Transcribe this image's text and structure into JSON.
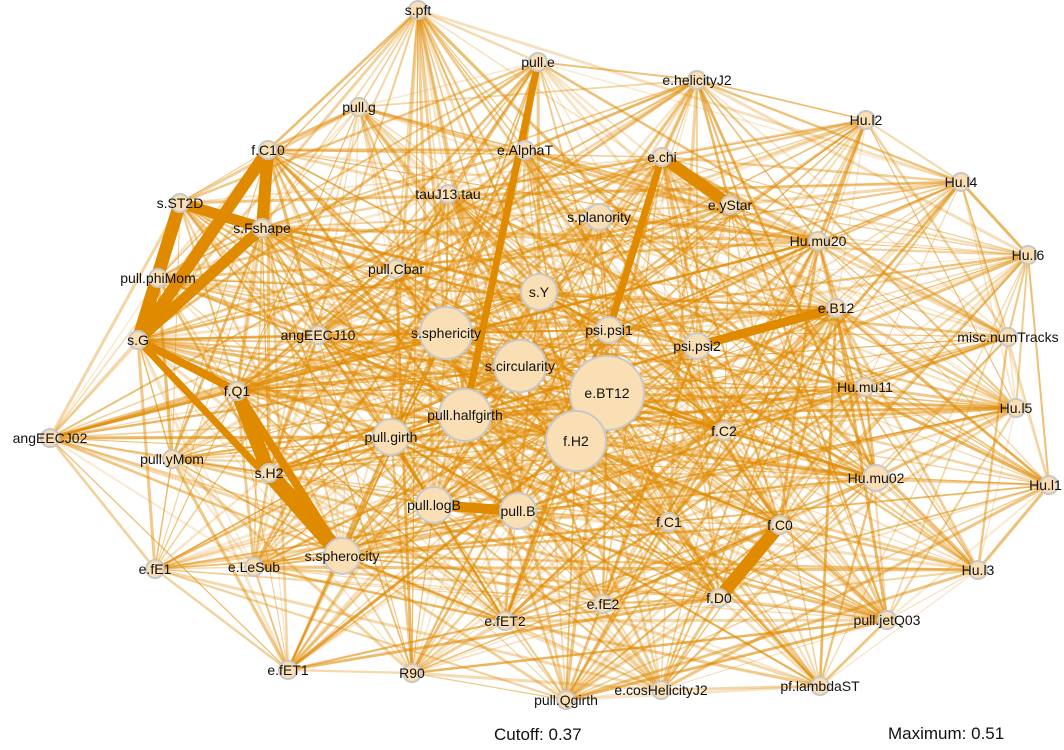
{
  "colors": {
    "edge": "#e08a00",
    "node_fill": "#f9dfb3",
    "node_stroke": "#c8c8c8"
  },
  "footer": {
    "cutoff": "Cutoff: 0.37",
    "maximum": "Maximum: 0.51"
  },
  "nodes": [
    {
      "id": "s.pft",
      "label": "s.pft",
      "size": 1
    },
    {
      "id": "pull.e",
      "label": "pull.e",
      "size": 1
    },
    {
      "id": "e.helicityJ2",
      "label": "e.helicityJ2",
      "size": 1
    },
    {
      "id": "pull.g",
      "label": "pull.g",
      "size": 1
    },
    {
      "id": "Hu.l2",
      "label": "Hu.l2",
      "size": 1
    },
    {
      "id": "f.C10",
      "label": "f.C10",
      "size": 1
    },
    {
      "id": "e.AlphaT",
      "label": "e.AlphaT",
      "size": 1
    },
    {
      "id": "e.chi",
      "label": "e.chi",
      "size": 1
    },
    {
      "id": "Hu.l4",
      "label": "Hu.l4",
      "size": 1
    },
    {
      "id": "s.ST2D",
      "label": "s.ST2D",
      "size": 1
    },
    {
      "id": "tauJ13.tau",
      "label": "tauJ13.tau",
      "size": 1
    },
    {
      "id": "e.yStar",
      "label": "e.yStar",
      "size": 1
    },
    {
      "id": "s.Fshape",
      "label": "s.Fshape",
      "size": 1
    },
    {
      "id": "s.planority",
      "label": "s.planority",
      "size": 2
    },
    {
      "id": "Hu.mu20",
      "label": "Hu.mu20",
      "size": 1
    },
    {
      "id": "Hu.l6",
      "label": "Hu.l6",
      "size": 1
    },
    {
      "id": "pull.phiMom",
      "label": "pull.phiMom",
      "size": 1
    },
    {
      "id": "pull.Cbar",
      "label": "pull.Cbar",
      "size": 1
    },
    {
      "id": "s.Y",
      "label": "s.Y",
      "size": 3
    },
    {
      "id": "e.B12",
      "label": "e.B12",
      "size": 1
    },
    {
      "id": "s.G",
      "label": "s.G",
      "size": 1
    },
    {
      "id": "angEECJ10",
      "label": "angEECJ10",
      "size": 1
    },
    {
      "id": "s.sphericity",
      "label": "s.sphericity",
      "size": 4
    },
    {
      "id": "psi.psi1",
      "label": "psi.psi1",
      "size": 2
    },
    {
      "id": "psi.psi2",
      "label": "psi.psi2",
      "size": 2
    },
    {
      "id": "misc.numTracks",
      "label": "misc.numTracks",
      "size": 1
    },
    {
      "id": "s.circularity",
      "label": "s.circularity",
      "size": 4
    },
    {
      "id": "f.Q1",
      "label": "f.Q1",
      "size": 1
    },
    {
      "id": "e.BT12",
      "label": "e.BT12",
      "size": 7
    },
    {
      "id": "Hu.mu11",
      "label": "Hu.mu11",
      "size": 1
    },
    {
      "id": "Hu.l5",
      "label": "Hu.l5",
      "size": 1
    },
    {
      "id": "angEECJ02",
      "label": "angEECJ02",
      "size": 1
    },
    {
      "id": "pull.halfgirth",
      "label": "pull.halfgirth",
      "size": 4
    },
    {
      "id": "f.H2",
      "label": "f.H2",
      "size": 6
    },
    {
      "id": "pull.girth",
      "label": "pull.girth",
      "size": 3
    },
    {
      "id": "f.C2",
      "label": "f.C2",
      "size": 1
    },
    {
      "id": "pull.yMom",
      "label": "pull.yMom",
      "size": 1
    },
    {
      "id": "s.H2",
      "label": "s.H2",
      "size": 1
    },
    {
      "id": "Hu.mu02",
      "label": "Hu.mu02",
      "size": 2
    },
    {
      "id": "Hu.l1",
      "label": "Hu.l1",
      "size": 1
    },
    {
      "id": "pull.logB",
      "label": "pull.logB",
      "size": 3
    },
    {
      "id": "pull.B",
      "label": "pull.B",
      "size": 3
    },
    {
      "id": "f.C1",
      "label": "f.C1",
      "size": 1
    },
    {
      "id": "f.C0",
      "label": "f.C0",
      "size": 1
    },
    {
      "id": "s.spherocity",
      "label": "s.spherocity",
      "size": 3
    },
    {
      "id": "e.fE1",
      "label": "e.fE1",
      "size": 1
    },
    {
      "id": "e.LeSub",
      "label": "e.LeSub",
      "size": 1
    },
    {
      "id": "Hu.l3",
      "label": "Hu.l3",
      "size": 1
    },
    {
      "id": "e.fE2",
      "label": "e.fE2",
      "size": 1
    },
    {
      "id": "f.D0",
      "label": "f.D0",
      "size": 1
    },
    {
      "id": "e.fET2",
      "label": "e.fET2",
      "size": 1
    },
    {
      "id": "pull.jetQ03",
      "label": "pull.jetQ03",
      "size": 1
    },
    {
      "id": "e.fET1",
      "label": "e.fET1",
      "size": 1
    },
    {
      "id": "R90",
      "label": "R90",
      "size": 1
    },
    {
      "id": "pull.Qgirth",
      "label": "pull.Qgirth",
      "size": 1
    },
    {
      "id": "e.cosHelicityJ2",
      "label": "e.cosHelicityJ2",
      "size": 1
    },
    {
      "id": "pf.lambdaST",
      "label": "pf.lambdaST",
      "size": 1
    }
  ],
  "strong_edges": [
    {
      "source": "s.H2",
      "target": "s.spherocity",
      "weight": 0.51
    },
    {
      "source": "f.Q1",
      "target": "s.H2",
      "weight": 0.49
    },
    {
      "source": "s.ST2D",
      "target": "s.G",
      "weight": 0.48
    },
    {
      "source": "s.ST2D",
      "target": "s.Fshape",
      "weight": 0.46
    },
    {
      "source": "f.C10",
      "target": "s.G",
      "weight": 0.47
    },
    {
      "source": "f.C10",
      "target": "s.Fshape",
      "weight": 0.47
    },
    {
      "source": "s.G",
      "target": "pull.phiMom",
      "weight": 0.45
    },
    {
      "source": "s.G",
      "target": "s.Fshape",
      "weight": 0.46
    },
    {
      "source": "f.C0",
      "target": "f.D0",
      "weight": 0.48
    },
    {
      "source": "e.chi",
      "target": "e.yStar",
      "weight": 0.47
    },
    {
      "source": "pull.logB",
      "target": "pull.B",
      "weight": 0.45
    },
    {
      "source": "psi.psi2",
      "target": "e.B12",
      "weight": 0.44
    },
    {
      "source": "f.H2",
      "target": "e.BT12",
      "weight": 0.45
    },
    {
      "source": "s.G",
      "target": "f.Q1",
      "weight": 0.43
    },
    {
      "source": "pull.e",
      "target": "pull.halfgirth",
      "weight": 0.42
    },
    {
      "source": "e.chi",
      "target": "psi.psi1",
      "weight": 0.42
    },
    {
      "source": "s.spherocity",
      "target": "s.G",
      "weight": 0.42
    },
    {
      "source": "s.spherocity",
      "target": "f.Q1",
      "weight": 0.43
    }
  ]
}
